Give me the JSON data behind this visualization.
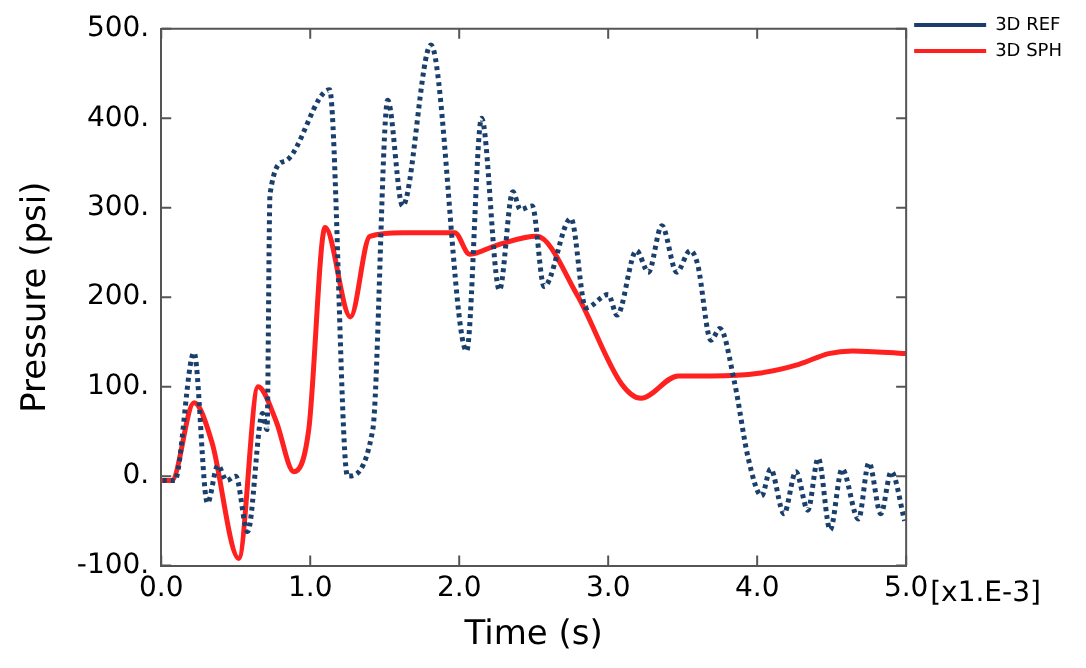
{
  "chart_data": {
    "type": "line",
    "xlabel": "Time (s)",
    "ylabel": "Pressure (psi)",
    "xlim": [
      0,
      5
    ],
    "ylim": [
      -100,
      500
    ],
    "xticks": [
      {
        "value": 0,
        "label": "0.0"
      },
      {
        "value": 1,
        "label": "1.0"
      },
      {
        "value": 2,
        "label": "2.0"
      },
      {
        "value": 3,
        "label": "3.0"
      },
      {
        "value": 4,
        "label": "4.0"
      },
      {
        "value": 5,
        "label": "5.0"
      }
    ],
    "yticks": [
      {
        "value": -100,
        "label": "-100."
      },
      {
        "value": 0,
        "label": "0."
      },
      {
        "value": 100,
        "label": "100."
      },
      {
        "value": 200,
        "label": "200."
      },
      {
        "value": 300,
        "label": "300."
      },
      {
        "value": 400,
        "label": "400."
      },
      {
        "value": 500,
        "label": "500."
      }
    ],
    "annotations": [
      "[x1.E-3]"
    ],
    "grid": false,
    "legend": "top right",
    "marker": "none",
    "series": [
      {
        "name": "3D REF",
        "color": "#1b3f6b",
        "line_style": "dotted",
        "x": [
          0.01,
          0.09,
          0.22,
          0.31,
          0.38,
          0.44,
          0.5,
          0.58,
          0.68,
          0.71,
          0.73,
          0.83,
          1.13,
          1.25,
          1.42,
          1.52,
          1.62,
          1.81,
          2.05,
          2.15,
          2.27,
          2.36,
          2.41,
          2.49,
          2.57,
          2.75,
          2.85,
          3.0,
          3.06,
          3.19,
          3.27,
          3.36,
          3.46,
          3.55,
          3.6,
          3.69,
          3.75,
          3.85,
          3.94,
          4.03,
          4.09,
          4.18,
          4.26,
          4.34,
          4.41,
          4.49,
          4.57,
          4.68,
          4.75,
          4.83,
          4.9,
          4.99
        ],
        "values": [
          -5,
          -5,
          138,
          -30,
          12,
          -5,
          0,
          -62,
          70,
          52,
          315,
          352,
          432,
          0,
          52,
          420,
          302,
          482,
          140,
          400,
          208,
          318,
          298,
          302,
          212,
          288,
          188,
          203,
          180,
          252,
          228,
          280,
          228,
          252,
          237,
          152,
          165,
          103,
          20,
          -22,
          8,
          -42,
          5,
          -38,
          20,
          -60,
          8,
          -48,
          15,
          -42,
          5,
          -50
        ]
      },
      {
        "name": "3D SPH",
        "color": "#ff2020",
        "line_style": "solid",
        "x": [
          0,
          0.07,
          0.22,
          0.34,
          0.52,
          0.65,
          0.77,
          0.89,
          0.99,
          1.1,
          1.27,
          1.4,
          1.62,
          1.97,
          2.07,
          2.25,
          2.52,
          2.79,
          3.09,
          3.22,
          3.47,
          3.69,
          4.01,
          4.28,
          4.48,
          4.64,
          5.0
        ],
        "values": [
          -5,
          -5,
          82,
          38,
          -92,
          100,
          62,
          5,
          52,
          278,
          178,
          268,
          272,
          272,
          248,
          258,
          268,
          203,
          103,
          87,
          112,
          112,
          115,
          125,
          137,
          140,
          137
        ]
      }
    ]
  }
}
